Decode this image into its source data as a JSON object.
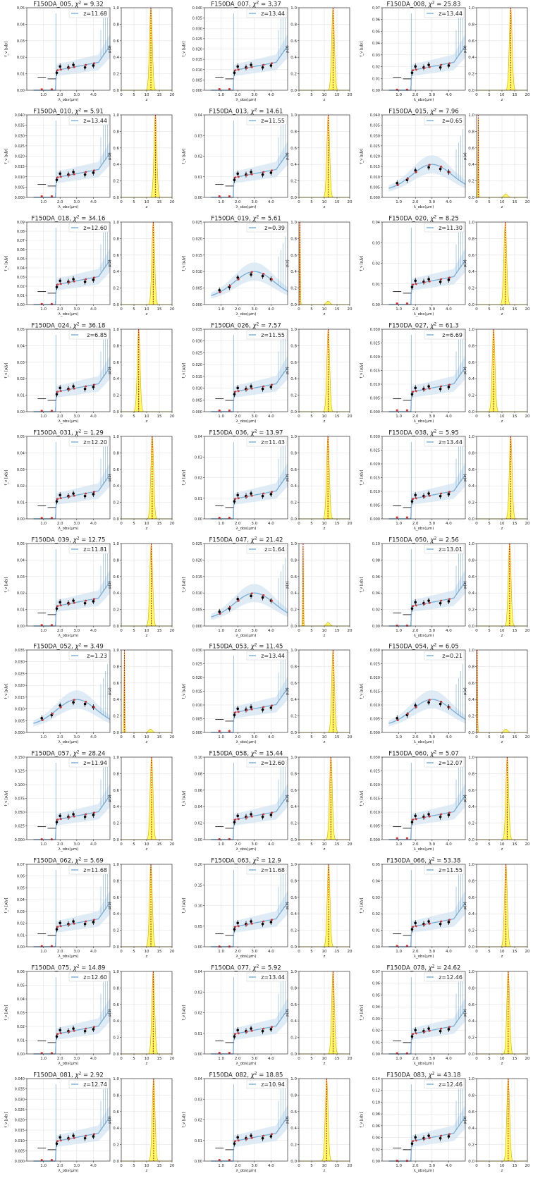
{
  "chart_data": {
    "type": "grid",
    "rows": 11,
    "cols": 3,
    "sed_axes": {
      "xlabel": "λ_obs(μm)",
      "ylabel": "f_ν [μJy]",
      "xlim": [
        0,
        5
      ],
      "xticks": [
        1.0,
        2.0,
        3.0,
        4.0
      ],
      "xtick_labels": [
        "1.0",
        "2.0",
        "3.0",
        "4.0"
      ]
    },
    "pz_axes": {
      "xlabel": "z",
      "ylabel": "p(z)",
      "xlim": [
        0,
        20
      ],
      "xticks": [
        0,
        5,
        10,
        15,
        20
      ],
      "ylim": [
        0,
        1.0
      ],
      "yticks": [
        0.0,
        0.2,
        0.4,
        0.6,
        0.8,
        1.0
      ]
    },
    "colors": {
      "model": "#7fb0d8",
      "model_fill": "#c9dff0",
      "pz_fill": "#ffff66",
      "pz_line": "#e0b000",
      "zline": "#e00000",
      "points": "#000000",
      "model_points": "#e03030",
      "grid": "#e3e3e3"
    },
    "objects": [
      {
        "id": "F150DA_005",
        "chi2": "9.32",
        "z": "11.68",
        "zval": 11.68,
        "ymax": 0.05,
        "yticks": [
          "0.00",
          "0.01",
          "0.02",
          "0.03",
          "0.04",
          "0.05"
        ]
      },
      {
        "id": "F150DA_007",
        "chi2": "3.37",
        "z": "13.44",
        "zval": 13.44,
        "ymax": 0.04,
        "yticks": [
          "0.000",
          "0.005",
          "0.010",
          "0.015",
          "0.020",
          "0.025",
          "0.030",
          "0.035",
          "0.040"
        ]
      },
      {
        "id": "F150DA_008",
        "chi2": "25.83",
        "z": "13.44",
        "zval": 13.44,
        "ymax": 0.07,
        "yticks": [
          "0.00",
          "0.01",
          "0.02",
          "0.03",
          "0.04",
          "0.05",
          "0.06",
          "0.07"
        ]
      },
      {
        "id": "F150DA_010",
        "chi2": "5.91",
        "z": "13.44",
        "zval": 13.44,
        "ymax": 0.04,
        "yticks": [
          "0.000",
          "0.005",
          "0.010",
          "0.015",
          "0.020",
          "0.025",
          "0.030",
          "0.035",
          "0.040"
        ]
      },
      {
        "id": "F150DA_013",
        "chi2": "14.61",
        "z": "11.55",
        "zval": 11.55,
        "ymax": 0.04,
        "yticks": [
          "0.00",
          "0.01",
          "0.02",
          "0.03",
          "0.04"
        ]
      },
      {
        "id": "F150DA_015",
        "chi2": "7.96",
        "z": "0.65",
        "zval": 0.65,
        "ymax": 0.04,
        "yticks": [
          "0.000",
          "0.005",
          "0.010",
          "0.015",
          "0.020",
          "0.025",
          "0.030",
          "0.035",
          "0.040"
        ]
      },
      {
        "id": "F150DA_018",
        "chi2": "34.16",
        "z": "12.60",
        "zval": 12.6,
        "ymax": 0.09,
        "yticks": [
          "0.00",
          "0.01",
          "0.02",
          "0.03",
          "0.04",
          "0.05",
          "0.06",
          "0.07",
          "0.08",
          "0.09"
        ]
      },
      {
        "id": "F150DA_019",
        "chi2": "5.61",
        "z": "0.39",
        "zval": 0.39,
        "ymax": 0.025,
        "yticks": [
          "0.000",
          "0.005",
          "0.010",
          "0.015",
          "0.020",
          "0.025"
        ]
      },
      {
        "id": "F150DA_020",
        "chi2": "8.25",
        "z": "11.30",
        "zval": 11.3,
        "ymax": 0.04,
        "yticks": [
          "0.00",
          "0.01",
          "0.02",
          "0.03",
          "0.04"
        ]
      },
      {
        "id": "F150DA_024",
        "chi2": "36.18",
        "z": "6.85",
        "zval": 6.85,
        "ymax": 0.05,
        "yticks": [
          "0.00",
          "0.01",
          "0.02",
          "0.03",
          "0.04",
          "0.05"
        ]
      },
      {
        "id": "F150DA_026",
        "chi2": "7.57",
        "z": "11.55",
        "zval": 11.55,
        "ymax": 0.035,
        "yticks": [
          "0.000",
          "0.005",
          "0.010",
          "0.015",
          "0.020",
          "0.025",
          "0.030",
          "0.035"
        ]
      },
      {
        "id": "F150DA_027",
        "chi2": "61.3",
        "z": "6.69",
        "zval": 6.69,
        "ymax": 0.03,
        "yticks": [
          "0.000",
          "0.005",
          "0.010",
          "0.015",
          "0.020",
          "0.025",
          "0.030"
        ]
      },
      {
        "id": "F150DA_031",
        "chi2": "1.29",
        "z": "12.20",
        "zval": 12.2,
        "ymax": 0.05,
        "yticks": [
          "0.00",
          "0.01",
          "0.02",
          "0.03",
          "0.04",
          "0.05"
        ]
      },
      {
        "id": "F150DA_036",
        "chi2": "13.97",
        "z": "11.43",
        "zval": 11.43,
        "ymax": 0.04,
        "yticks": [
          "0.00",
          "0.01",
          "0.02",
          "0.03",
          "0.04"
        ]
      },
      {
        "id": "F150DA_038",
        "chi2": "5.95",
        "z": "13.44",
        "zval": 13.44,
        "ymax": 0.03,
        "yticks": [
          "0.000",
          "0.005",
          "0.010",
          "0.015",
          "0.020",
          "0.025",
          "0.030"
        ]
      },
      {
        "id": "F150DA_039",
        "chi2": "12.75",
        "z": "11.81",
        "zval": 11.81,
        "ymax": 0.05,
        "yticks": [
          "0.00",
          "0.01",
          "0.02",
          "0.03",
          "0.04",
          "0.05"
        ]
      },
      {
        "id": "F150DA_047",
        "chi2": "21.42",
        "z": "1.64",
        "zval": 1.64,
        "ymax": 0.025,
        "yticks": [
          "0.000",
          "0.005",
          "0.010",
          "0.015",
          "0.020",
          "0.025"
        ]
      },
      {
        "id": "F150DA_050",
        "chi2": "2.56",
        "z": "13.01",
        "zval": 13.01,
        "ymax": 0.1,
        "yticks": [
          "0.00",
          "0.02",
          "0.04",
          "0.06",
          "0.08",
          "0.10"
        ]
      },
      {
        "id": "F150DA_052",
        "chi2": "3.49",
        "z": "1.23",
        "zval": 1.23,
        "ymax": 0.035,
        "yticks": [
          "0.000",
          "0.005",
          "0.010",
          "0.015",
          "0.020",
          "0.025",
          "0.030",
          "0.035"
        ]
      },
      {
        "id": "F150DA_053",
        "chi2": "11.45",
        "z": "13.44",
        "zval": 13.44,
        "ymax": 0.03,
        "yticks": [
          "0.000",
          "0.005",
          "0.010",
          "0.015",
          "0.020",
          "0.025",
          "0.030"
        ]
      },
      {
        "id": "F150DA_054",
        "chi2": "6.05",
        "z": "0.21",
        "zval": 0.21,
        "ymax": 0.03,
        "yticks": [
          "0.000",
          "0.005",
          "0.010",
          "0.015",
          "0.020",
          "0.025",
          "0.030"
        ]
      },
      {
        "id": "F150DA_057",
        "chi2": "28.24",
        "z": "11.94",
        "zval": 11.94,
        "ymax": 0.15,
        "yticks": [
          "0.000",
          "0.025",
          "0.050",
          "0.075",
          "0.100",
          "0.125",
          "0.150"
        ]
      },
      {
        "id": "F150DA_058",
        "chi2": "15.44",
        "z": "12.60",
        "zval": 12.6,
        "ymax": 0.1,
        "yticks": [
          "0.00",
          "0.02",
          "0.04",
          "0.06",
          "0.08",
          "0.10"
        ]
      },
      {
        "id": "F150DA_060",
        "chi2": "5.07",
        "z": "12.07",
        "zval": 12.07,
        "ymax": 0.03,
        "yticks": [
          "0.000",
          "0.005",
          "0.010",
          "0.015",
          "0.020",
          "0.025",
          "0.030"
        ]
      },
      {
        "id": "F150DA_062",
        "chi2": "5.69",
        "z": "11.68",
        "zval": 11.68,
        "ymax": 0.07,
        "yticks": [
          "0.00",
          "0.01",
          "0.02",
          "0.03",
          "0.04",
          "0.05",
          "0.06",
          "0.07"
        ]
      },
      {
        "id": "F150DA_063",
        "chi2": "12.9",
        "z": "11.68",
        "zval": 11.68,
        "ymax": 0.2,
        "yticks": [
          "0.00",
          "0.05",
          "0.10",
          "0.15",
          "0.20"
        ]
      },
      {
        "id": "F150DA_066",
        "chi2": "53.38",
        "z": "11.55",
        "zval": 11.55,
        "ymax": 0.05,
        "yticks": [
          "0.00",
          "0.01",
          "0.02",
          "0.03",
          "0.04",
          "0.05"
        ]
      },
      {
        "id": "F150DA_075",
        "chi2": "14.89",
        "z": "12.60",
        "zval": 12.6,
        "ymax": 0.06,
        "yticks": [
          "0.00",
          "0.01",
          "0.02",
          "0.03",
          "0.04",
          "0.05",
          "0.06"
        ]
      },
      {
        "id": "F150DA_077",
        "chi2": "5.92",
        "z": "13.44",
        "zval": 13.44,
        "ymax": 0.04,
        "yticks": [
          "0.00",
          "0.01",
          "0.02",
          "0.03",
          "0.04"
        ]
      },
      {
        "id": "F150DA_078",
        "chi2": "24.62",
        "z": "12.46",
        "zval": 12.46,
        "ymax": 0.07,
        "yticks": [
          "0.00",
          "0.01",
          "0.02",
          "0.03",
          "0.04",
          "0.05",
          "0.06",
          "0.07"
        ]
      },
      {
        "id": "F150DA_081",
        "chi2": "2.92",
        "z": "12.74",
        "zval": 12.74,
        "ymax": 0.04,
        "yticks": [
          "0.000",
          "0.005",
          "0.010",
          "0.015",
          "0.020",
          "0.025",
          "0.030",
          "0.035",
          "0.040"
        ]
      },
      {
        "id": "F150DA_082",
        "chi2": "18.85",
        "z": "10.94",
        "zval": 10.94,
        "ymax": 0.04,
        "yticks": [
          "0.00",
          "0.01",
          "0.02",
          "0.03",
          "0.04"
        ]
      },
      {
        "id": "F150DA_083",
        "chi2": "43.18",
        "z": "12.46",
        "zval": 12.46,
        "ymax": 0.14,
        "yticks": [
          "0.00",
          "0.02",
          "0.04",
          "0.06",
          "0.08",
          "0.10",
          "0.12",
          "0.14"
        ]
      }
    ]
  }
}
